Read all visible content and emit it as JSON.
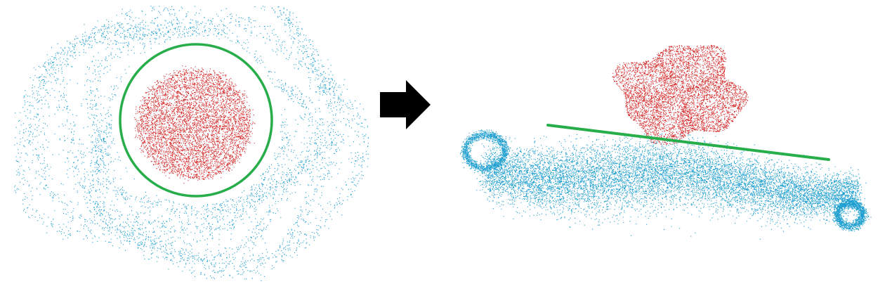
{
  "colors": {
    "background": "#ffffff",
    "inner_points": "#d42a2a",
    "outer_points": "#1f9fd0",
    "separator": "#27ae4a",
    "arrow": "#000000"
  },
  "panels": [
    {
      "id": "before",
      "separator_shape": "circle"
    },
    {
      "id": "after",
      "separator_shape": "line"
    }
  ],
  "arrow": {
    "icon": "right-arrow-icon"
  }
}
